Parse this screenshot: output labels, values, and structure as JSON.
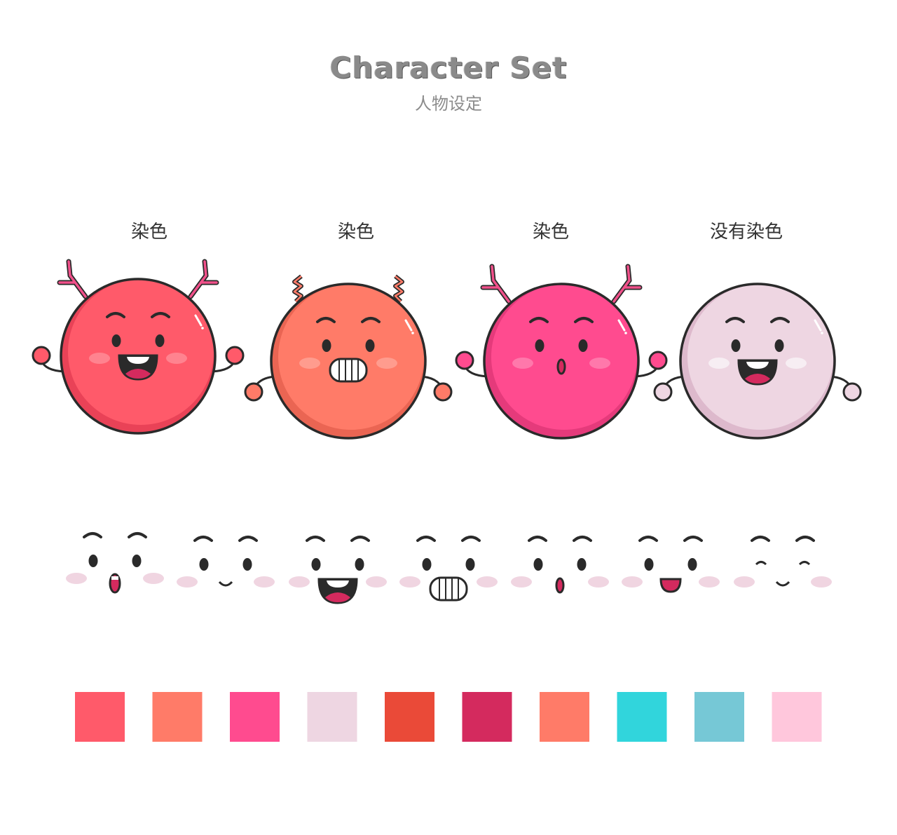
{
  "header": {
    "title": "Character Set",
    "subtitle": "人物设定"
  },
  "characters": [
    {
      "label": "染色",
      "color": "#FF5A6A",
      "shade": "#E94257",
      "hair": "antlers",
      "hair_color": "#F0508A",
      "hand_color": "#FF5A6A",
      "mouth": "open"
    },
    {
      "label": "染色",
      "color": "#FF7B68",
      "shade": "#EA6553",
      "hair": "springs",
      "hair_color": "#FF7B68",
      "hand_color": "#FF7B68",
      "mouth": "teeth"
    },
    {
      "label": "染色",
      "color": "#FF4B8F",
      "shade": "#E53A7B",
      "hair": "antlers",
      "hair_color": "#F0508A",
      "hand_color": "#FF4B8F",
      "mouth": "small-o"
    },
    {
      "label": "没有染色",
      "color": "#EED6E2",
      "shade": "#DDB9CC",
      "hair": "none",
      "hair_color": "",
      "hand_color": "#EED6E2",
      "mouth": "open"
    }
  ],
  "expressions": [
    "surprised",
    "smile",
    "open-laugh",
    "grin-teeth",
    "small-o",
    "small-open",
    "closed-eyes-smile"
  ],
  "palette": [
    "#FF5A6A",
    "#FF7B68",
    "#FF4B8F",
    "#EED6E2",
    "#EA4A38",
    "#D42A5E",
    "#FF7B68",
    "#31D5DC",
    "#76C8D6",
    "#FFC7DC"
  ]
}
